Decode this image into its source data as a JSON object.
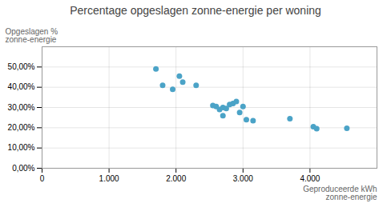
{
  "chart_data": {
    "type": "scatter",
    "title": "Percentage opgeslagen zonne-energie per woning",
    "xlabel": "Geproduceerde kWh\nzonne-energie",
    "ylabel": "Opgeslagen %\nzonne-energie",
    "x": [
      1700,
      1800,
      1950,
      2050,
      2100,
      2300,
      2550,
      2600,
      2650,
      2700,
      2700,
      2750,
      2800,
      2850,
      2900,
      2950,
      3000,
      3050,
      3150,
      3700,
      4050,
      4100,
      4550
    ],
    "y": [
      0.49,
      0.41,
      0.39,
      0.455,
      0.425,
      0.41,
      0.31,
      0.305,
      0.29,
      0.26,
      0.3,
      0.295,
      0.315,
      0.32,
      0.33,
      0.275,
      0.305,
      0.24,
      0.235,
      0.245,
      0.205,
      0.195,
      0.197
    ],
    "color": "#4BA3C7",
    "xlim": [
      0,
      5000
    ],
    "ylim": [
      0.0,
      0.6
    ],
    "xticks": [
      0,
      {
        "value": 1000,
        "label": "1.000"
      },
      {
        "value": 2000,
        "label": "2.000"
      },
      {
        "value": 3000,
        "label": "3.000"
      },
      {
        "value": 4000,
        "label": "4.000"
      }
    ],
    "yticks": [
      {
        "value": 0.0,
        "label": "0,00%"
      },
      {
        "value": 0.1,
        "label": "10,00%"
      },
      {
        "value": 0.2,
        "label": "20,00%"
      },
      {
        "value": 0.3,
        "label": "30,00%"
      },
      {
        "value": 0.4,
        "label": "40,00%"
      },
      {
        "value": 0.5,
        "label": "50,00%"
      }
    ],
    "grid": true
  }
}
